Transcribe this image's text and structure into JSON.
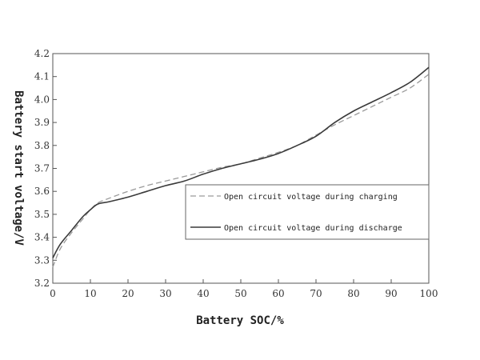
{
  "chart_data": {
    "type": "line",
    "xlabel": "Battery SOC/%",
    "ylabel": "Battery start voltage/V",
    "xlim": [
      0,
      100
    ],
    "ylim": [
      3.2,
      4.2
    ],
    "x_ticks": [
      "0",
      "10",
      "20",
      "30",
      "40",
      "50",
      "60",
      "70",
      "80",
      "90",
      "100"
    ],
    "y_ticks": [
      "3.2",
      "3.3",
      "3.4",
      "3.5",
      "3.6",
      "3.7",
      "3.8",
      "3.9",
      "4.0",
      "4.1",
      "4.2"
    ],
    "grid": false,
    "legend_position": "center-right",
    "series": [
      {
        "name": "Open circuit voltage during charging",
        "style": "dashed",
        "color": "#9a9a9a",
        "x": [
          0,
          2,
          5,
          8,
          10,
          12,
          15,
          20,
          25,
          30,
          35,
          40,
          45,
          50,
          55,
          60,
          65,
          70,
          75,
          80,
          85,
          90,
          95,
          100
        ],
        "y": [
          3.27,
          3.35,
          3.42,
          3.48,
          3.52,
          3.55,
          3.57,
          3.6,
          3.625,
          3.645,
          3.665,
          3.685,
          3.705,
          3.72,
          3.745,
          3.77,
          3.8,
          3.845,
          3.89,
          3.93,
          3.97,
          4.01,
          4.05,
          4.11
        ]
      },
      {
        "name": "Open circuit voltage during discharge",
        "style": "solid",
        "color": "#3a3a3a",
        "x": [
          0,
          2,
          5,
          8,
          10,
          12,
          15,
          20,
          25,
          30,
          35,
          40,
          45,
          50,
          55,
          60,
          65,
          70,
          75,
          80,
          85,
          90,
          95,
          100
        ],
        "y": [
          3.31,
          3.37,
          3.43,
          3.49,
          3.52,
          3.545,
          3.555,
          3.575,
          3.6,
          3.625,
          3.645,
          3.675,
          3.7,
          3.72,
          3.74,
          3.765,
          3.8,
          3.84,
          3.9,
          3.95,
          3.99,
          4.03,
          4.075,
          4.14
        ]
      }
    ]
  }
}
